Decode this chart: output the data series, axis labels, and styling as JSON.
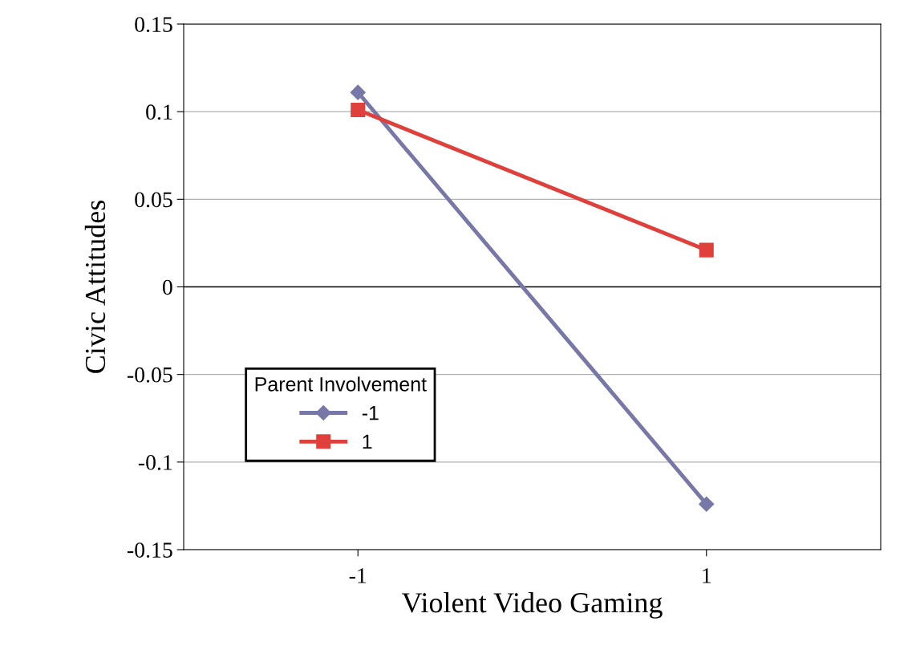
{
  "chart_data": {
    "type": "line",
    "xlabel": "Violent Video Gaming",
    "ylabel": "Civic Attitudes",
    "x": [
      -1,
      1
    ],
    "xlim": [
      -2,
      2
    ],
    "xticks": [
      -1,
      1
    ],
    "series": [
      {
        "name": "-1",
        "color": "#7878a8",
        "marker": "diamond",
        "values": [
          0.111,
          -0.124
        ]
      },
      {
        "name": "1",
        "color": "#e0403c",
        "marker": "square",
        "values": [
          0.101,
          0.021
        ]
      }
    ],
    "legend_title": "Parent Involvement",
    "legend": "bottom left",
    "ylim": [
      -0.15,
      0.15
    ],
    "yticks": [
      -0.15,
      -0.1,
      -0.05,
      0,
      0.05,
      0.1,
      0.15
    ],
    "grid": "y",
    "line_style": "solid"
  }
}
